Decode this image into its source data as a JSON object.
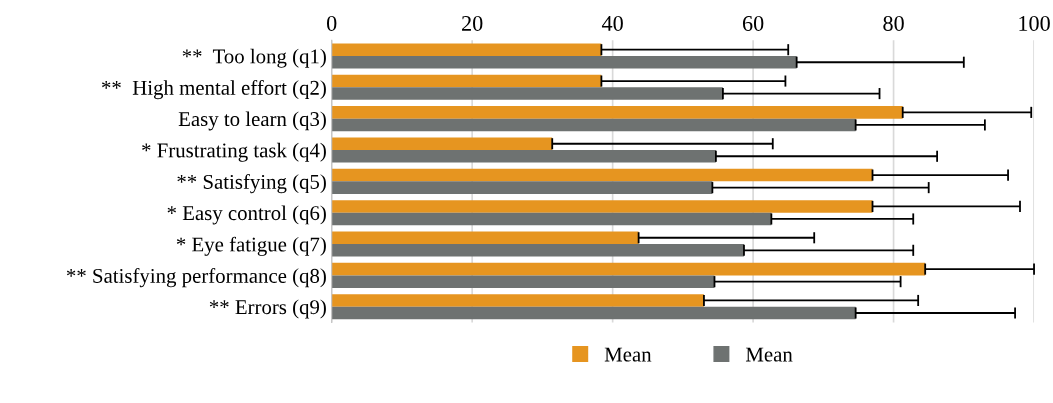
{
  "chart_data": {
    "type": "bar",
    "orientation": "horizontal",
    "categories": [
      "**  Too long (q1)",
      "**  High mental effort (q2)",
      "Easy to learn (q3)",
      "* Frustrating task (q4)",
      "** Satisfying (q5)",
      "* Easy control (q6)",
      "* Eye fatigue (q7)",
      "** Satisfying performance (q8)",
      "** Errors (q9)"
    ],
    "series": [
      {
        "name": "Mean",
        "color": "#e69520",
        "values": [
          38.4,
          38.4,
          81.3,
          31.4,
          77,
          77,
          43.7,
          84.5,
          53
        ],
        "errors": [
          [
            38.4,
            65
          ],
          [
            38.4,
            64.6
          ],
          [
            81.3,
            99.6
          ],
          [
            31.4,
            62.8
          ],
          [
            77,
            96.3
          ],
          [
            77,
            98
          ],
          [
            43.7,
            68.7
          ],
          [
            84.5,
            100
          ],
          [
            53,
            83.5
          ]
        ]
      },
      {
        "name": "Mean",
        "color": "#6e7271",
        "values": [
          66.2,
          55.7,
          74.6,
          54.7,
          54.2,
          62.6,
          58.7,
          54.5,
          74.6
        ],
        "errors": [
          [
            66.2,
            90
          ],
          [
            55.7,
            78
          ],
          [
            74.6,
            93
          ],
          [
            54.7,
            86.2
          ],
          [
            54.2,
            85
          ],
          [
            62.6,
            82.8
          ],
          [
            58.7,
            82.8
          ],
          [
            54.5,
            81
          ],
          [
            74.6,
            97.3
          ]
        ]
      }
    ],
    "xlim": [
      0,
      100
    ],
    "xticks": [
      0,
      20,
      40,
      60,
      80,
      100
    ],
    "grid": "x",
    "legend": "bottom"
  }
}
